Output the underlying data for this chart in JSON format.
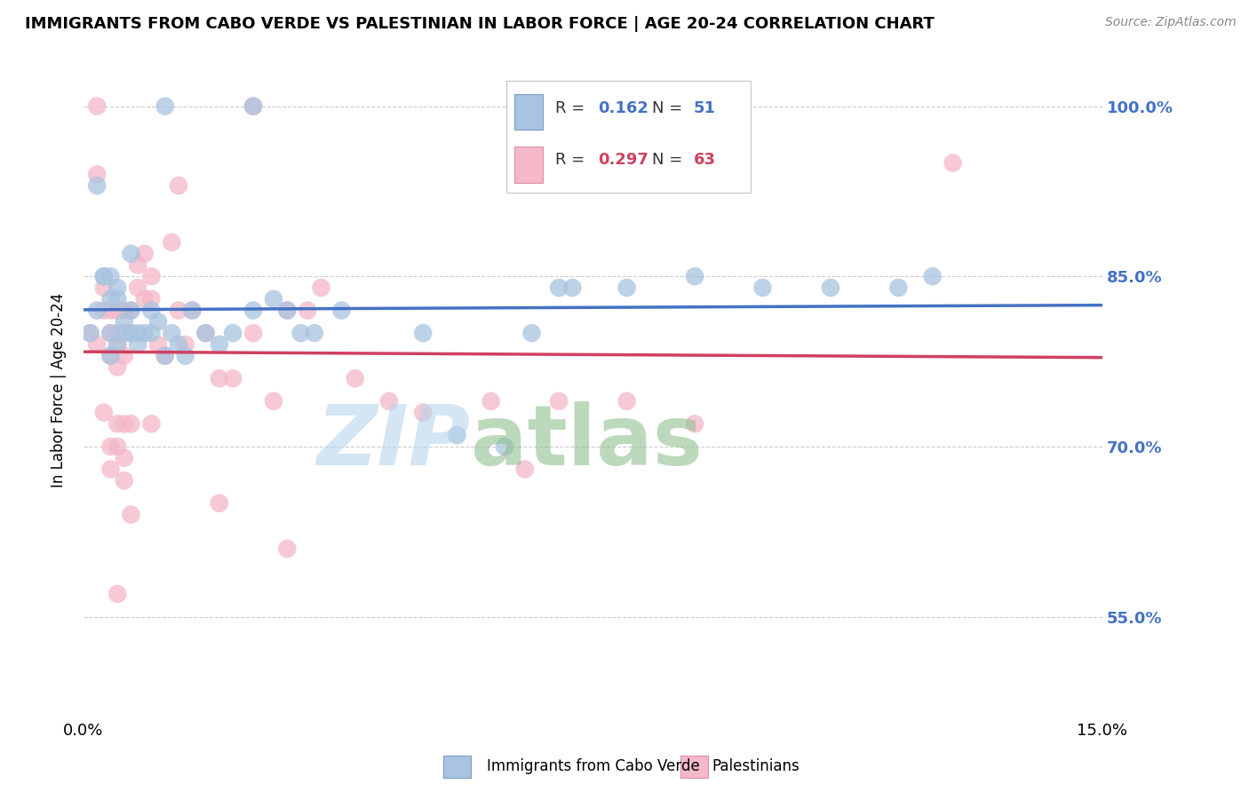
{
  "title": "IMMIGRANTS FROM CABO VERDE VS PALESTINIAN IN LABOR FORCE | AGE 20-24 CORRELATION CHART",
  "source": "Source: ZipAtlas.com",
  "ylabel": "In Labor Force | Age 20-24",
  "xlim": [
    0.0,
    0.15
  ],
  "ylim": [
    0.46,
    1.04
  ],
  "xticks": [
    0.0,
    0.03,
    0.06,
    0.09,
    0.12,
    0.15
  ],
  "xticklabels": [
    "0.0%",
    "",
    "",
    "",
    "",
    "15.0%"
  ],
  "yticks_right": [
    0.55,
    0.7,
    0.85,
    1.0
  ],
  "ytick_labels_right": [
    "55.0%",
    "70.0%",
    "85.0%",
    "100.0%"
  ],
  "label_cabo": "Immigrants from Cabo Verde",
  "label_pal": "Palestinians",
  "color_cabo": "#a8c4e0",
  "color_pal": "#f4b8c8",
  "line_color_cabo": "#4472c4",
  "line_color_pal": "#d04060",
  "cabo_x": [
    0.012,
    0.002,
    0.025,
    0.007,
    0.001,
    0.002,
    0.003,
    0.003,
    0.004,
    0.004,
    0.005,
    0.005,
    0.004,
    0.004,
    0.005,
    0.006,
    0.006,
    0.007,
    0.007,
    0.008,
    0.008,
    0.009,
    0.01,
    0.01,
    0.011,
    0.012,
    0.013,
    0.014,
    0.015,
    0.016,
    0.018,
    0.02,
    0.022,
    0.025,
    0.028,
    0.03,
    0.032,
    0.034,
    0.038,
    0.05,
    0.055,
    0.062,
    0.066,
    0.07,
    0.072,
    0.08,
    0.09,
    0.1,
    0.11,
    0.12,
    0.125
  ],
  "cabo_y": [
    1.0,
    0.93,
    1.0,
    0.87,
    0.8,
    0.82,
    0.85,
    0.85,
    0.85,
    0.83,
    0.83,
    0.84,
    0.8,
    0.78,
    0.79,
    0.81,
    0.8,
    0.8,
    0.82,
    0.8,
    0.79,
    0.8,
    0.8,
    0.82,
    0.81,
    0.78,
    0.8,
    0.79,
    0.78,
    0.82,
    0.8,
    0.79,
    0.8,
    0.82,
    0.83,
    0.82,
    0.8,
    0.8,
    0.82,
    0.8,
    0.71,
    0.7,
    0.8,
    0.84,
    0.84,
    0.84,
    0.85,
    0.84,
    0.84,
    0.84,
    0.85
  ],
  "pal_x": [
    0.002,
    0.025,
    0.002,
    0.014,
    0.001,
    0.002,
    0.003,
    0.003,
    0.004,
    0.004,
    0.005,
    0.005,
    0.004,
    0.005,
    0.005,
    0.006,
    0.006,
    0.007,
    0.007,
    0.008,
    0.008,
    0.009,
    0.009,
    0.01,
    0.01,
    0.011,
    0.012,
    0.013,
    0.014,
    0.015,
    0.016,
    0.018,
    0.02,
    0.022,
    0.025,
    0.028,
    0.03,
    0.033,
    0.035,
    0.04,
    0.045,
    0.05,
    0.06,
    0.065,
    0.07,
    0.08,
    0.09,
    0.006,
    0.007,
    0.004,
    0.003,
    0.004,
    0.005,
    0.005,
    0.006,
    0.006,
    0.007,
    0.01,
    0.02,
    0.005,
    0.03,
    0.128
  ],
  "pal_y": [
    1.0,
    1.0,
    0.94,
    0.93,
    0.8,
    0.79,
    0.82,
    0.84,
    0.82,
    0.8,
    0.8,
    0.82,
    0.78,
    0.79,
    0.77,
    0.78,
    0.82,
    0.8,
    0.82,
    0.86,
    0.84,
    0.87,
    0.83,
    0.83,
    0.85,
    0.79,
    0.78,
    0.88,
    0.82,
    0.79,
    0.82,
    0.8,
    0.76,
    0.76,
    0.8,
    0.74,
    0.82,
    0.82,
    0.84,
    0.76,
    0.74,
    0.73,
    0.74,
    0.68,
    0.74,
    0.74,
    0.72,
    0.72,
    0.72,
    0.7,
    0.73,
    0.68,
    0.72,
    0.7,
    0.69,
    0.67,
    0.64,
    0.72,
    0.65,
    0.57,
    0.61,
    0.95
  ]
}
